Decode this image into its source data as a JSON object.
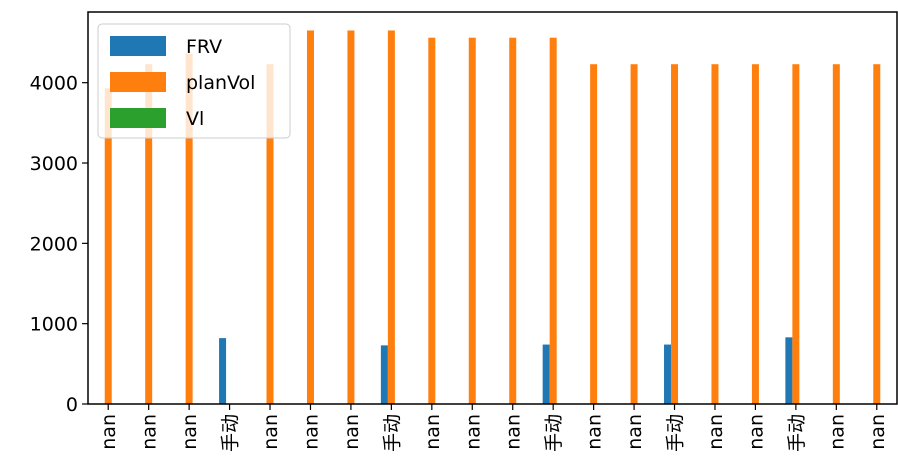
{
  "chart_data": {
    "type": "bar",
    "categories": [
      "nan",
      "nan",
      "nan",
      "手动",
      "nan",
      "nan",
      "nan",
      "手动",
      "nan",
      "nan",
      "nan",
      "手动",
      "nan",
      "nan",
      "手动",
      "nan",
      "nan",
      "手动",
      "nan",
      "nan"
    ],
    "series": [
      {
        "name": "FRV",
        "color": "#1f77b4",
        "values": [
          0,
          0,
          0,
          820,
          0,
          0,
          0,
          730,
          0,
          0,
          0,
          740,
          0,
          0,
          740,
          0,
          0,
          830,
          0,
          0
        ]
      },
      {
        "name": "planVol",
        "color": "#ff7f0e",
        "values": [
          3930,
          4230,
          4360,
          0,
          4230,
          4650,
          4650,
          4650,
          4560,
          4560,
          4560,
          4560,
          4230,
          4230,
          4230,
          4230,
          4230,
          4230,
          4230,
          4230
        ]
      },
      {
        "name": "Vl",
        "color": "#2ca02c",
        "values": [
          0,
          0,
          0,
          0,
          0,
          0,
          0,
          0,
          0,
          0,
          0,
          0,
          0,
          0,
          0,
          0,
          0,
          0,
          0,
          0
        ]
      }
    ],
    "yticks": [
      0,
      1000,
      2000,
      3000,
      4000
    ],
    "ylim": [
      0,
      4880
    ],
    "legend_position": "upper-left",
    "grid": false
  }
}
